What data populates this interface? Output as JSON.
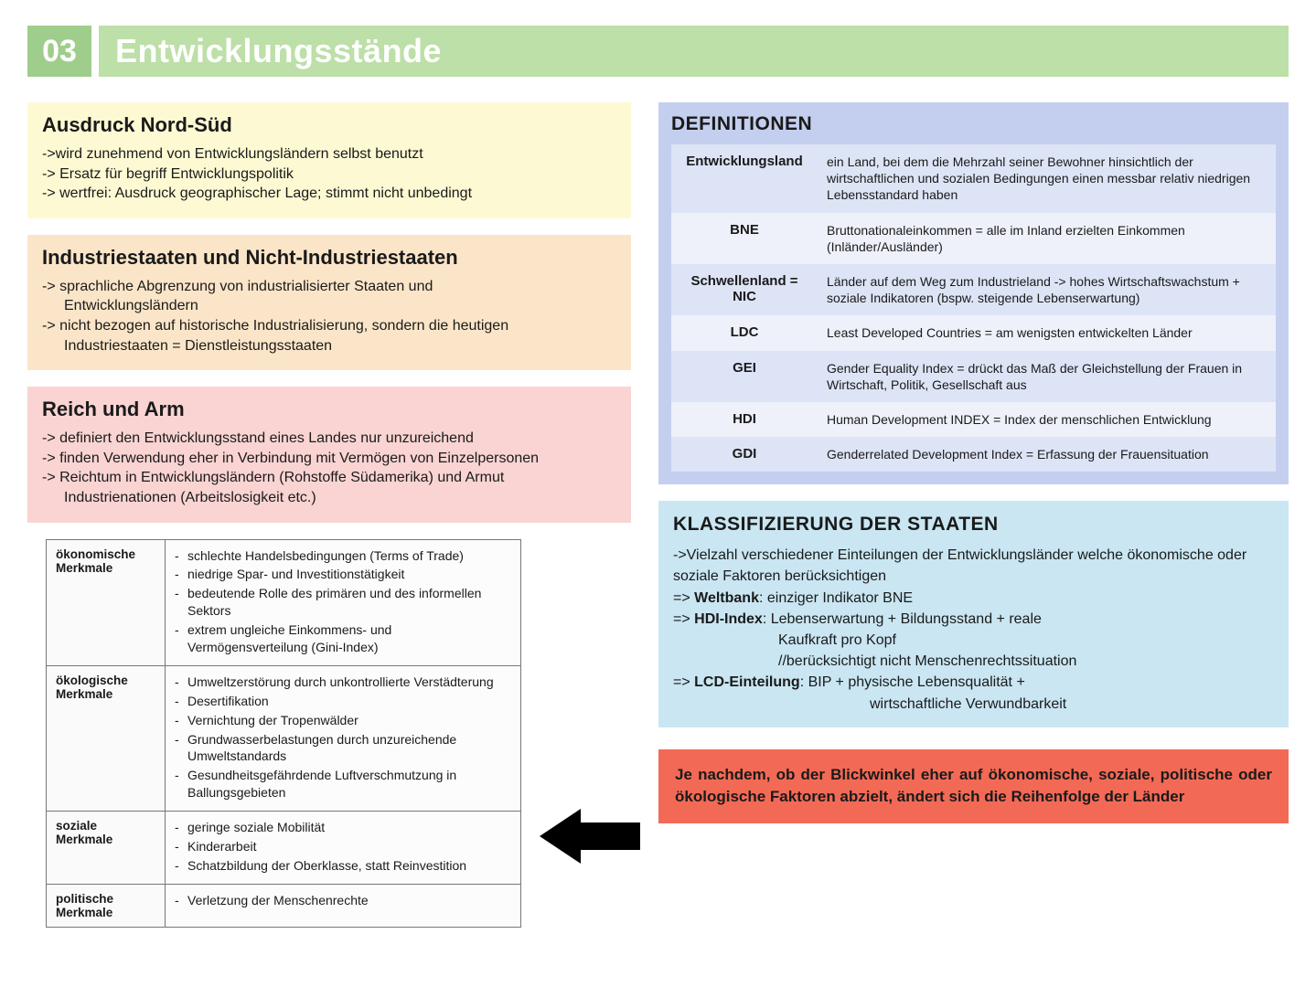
{
  "header": {
    "number": "03",
    "title": "Entwicklungsstände"
  },
  "colors": {
    "yellow": "#fdfad3",
    "orange": "#fbe5c8",
    "pink": "#f9d4d2",
    "blue_def": "#c4cfef",
    "blue_klass": "#c9e6f2",
    "red": "#f26a56",
    "header_num_bg": "#9fce8c",
    "header_title_bg": "#bddfa8",
    "header_text": "#ffffff"
  },
  "blocks": {
    "nordSued": {
      "title": "Ausdruck Nord-Süd",
      "lines": [
        "->wird zunehmend von Entwicklungsländern selbst benutzt",
        "-> Ersatz für begriff Entwicklungspolitik",
        "-> wertfrei: Ausdruck geographischer Lage; stimmt nicht unbedingt"
      ]
    },
    "industrie": {
      "title": "Industriestaaten und Nicht-Industriestaaten",
      "lines": [
        "-> sprachliche Abgrenzung von industrialisierter Staaten und",
        "Entwicklungsländern",
        "-> nicht bezogen auf historische Industrialisierung, sondern die heutigen",
        "Industriestaaten = Dienstleistungsstaaten"
      ],
      "indent": [
        false,
        true,
        false,
        true
      ]
    },
    "reichArm": {
      "title": "Reich und Arm",
      "lines": [
        "-> definiert den Entwicklungsstand eines Landes nur unzureichend",
        "-> finden Verwendung eher in Verbindung mit Vermögen von Einzelpersonen",
        "-> Reichtum in Entwicklungsländern (Rohstoffe Südamerika) und Armut",
        "Industrienationen (Arbeitslosigkeit etc.)"
      ],
      "indent": [
        false,
        false,
        false,
        true
      ]
    }
  },
  "merkmale": [
    {
      "head": "ökonomische Merkmale",
      "items": [
        "schlechte Handelsbedingungen (Terms of Trade)",
        "niedrige Spar- und Investitionstätigkeit",
        "bedeutende Rolle des primären und des informellen Sektors",
        "extrem ungleiche Einkommens- und Vermögensverteilung (Gini-Index)"
      ]
    },
    {
      "head": "ökologische Merkmale",
      "items": [
        "Umweltzerstörung durch unkontrollierte Verstädterung",
        "Desertifikation",
        "Vernichtung der Tropenwälder",
        "Grundwasserbelastungen durch unzureichende Umweltstandards",
        "Gesundheitsgefährdende Luftverschmutzung in Ballungsgebieten"
      ]
    },
    {
      "head": "soziale Merkmale",
      "items": [
        "geringe soziale Mobilität",
        "Kinderarbeit",
        "Schatzbildung der Oberklasse, statt Reinvestition"
      ]
    },
    {
      "head": "politische Merkmale",
      "items": [
        "Verletzung der Menschenrechte"
      ]
    }
  ],
  "definitionen": {
    "title": "DEFINITIONEN",
    "rows": [
      {
        "term": "Entwicklungsland",
        "desc": "ein Land, bei dem die Mehrzahl seiner Bewohner hinsichtlich der wirtschaftlichen und sozialen Bedingungen einen messbar relativ niedrigen Lebensstandard haben"
      },
      {
        "term": "BNE",
        "desc": "Bruttonationaleinkommen = alle im Inland erzielten Einkommen (Inländer/Ausländer)"
      },
      {
        "term": "Schwellenland = NIC",
        "desc": "Länder auf dem Weg zum Industrieland -> hohes Wirtschaftswachstum + soziale Indikatoren (bspw. steigende Lebenserwartung)"
      },
      {
        "term": "LDC",
        "desc": "Least Developed Countries = am wenigsten entwickelten Länder"
      },
      {
        "term": "GEI",
        "desc": "Gender Equality Index = drückt das Maß der Gleichstellung der Frauen in Wirtschaft, Politik, Gesellschaft aus"
      },
      {
        "term": "HDI",
        "desc": "Human Development INDEX = Index der menschlichen Entwicklung"
      },
      {
        "term": "GDI",
        "desc": "Genderrelated Development Index = Erfassung der Frauensituation"
      }
    ]
  },
  "klassifizierung": {
    "title": "KLASSIFIZIERUNG DER STAATEN",
    "l1": "->Vielzahl verschiedener Einteilungen der Entwicklungsländer welche ökonomische oder soziale Faktoren berücksichtigen",
    "l2_pre": "=> ",
    "l2_b": "Weltbank",
    "l2_post": ": einziger Indikator BNE",
    "l3_pre": "=> ",
    "l3_b": "HDI-Index",
    "l3_post": ": Lebenserwartung + Bildungsstand + reale",
    "l4": "Kaufkraft pro Kopf",
    "l5": "//berücksichtigt nicht Menschenrechtssituation",
    "l6_pre": "=> ",
    "l6_b": "LCD-Einteilung",
    "l6_post": ": BIP + physische Lebensqualität +",
    "l7": "wirtschaftliche Verwundbarkeit"
  },
  "callout": "Je nachdem, ob der Blickwinkel eher auf ökonomische, soziale, politische oder ökologische Faktoren abzielt, ändert sich die Reihenfolge der Länder"
}
